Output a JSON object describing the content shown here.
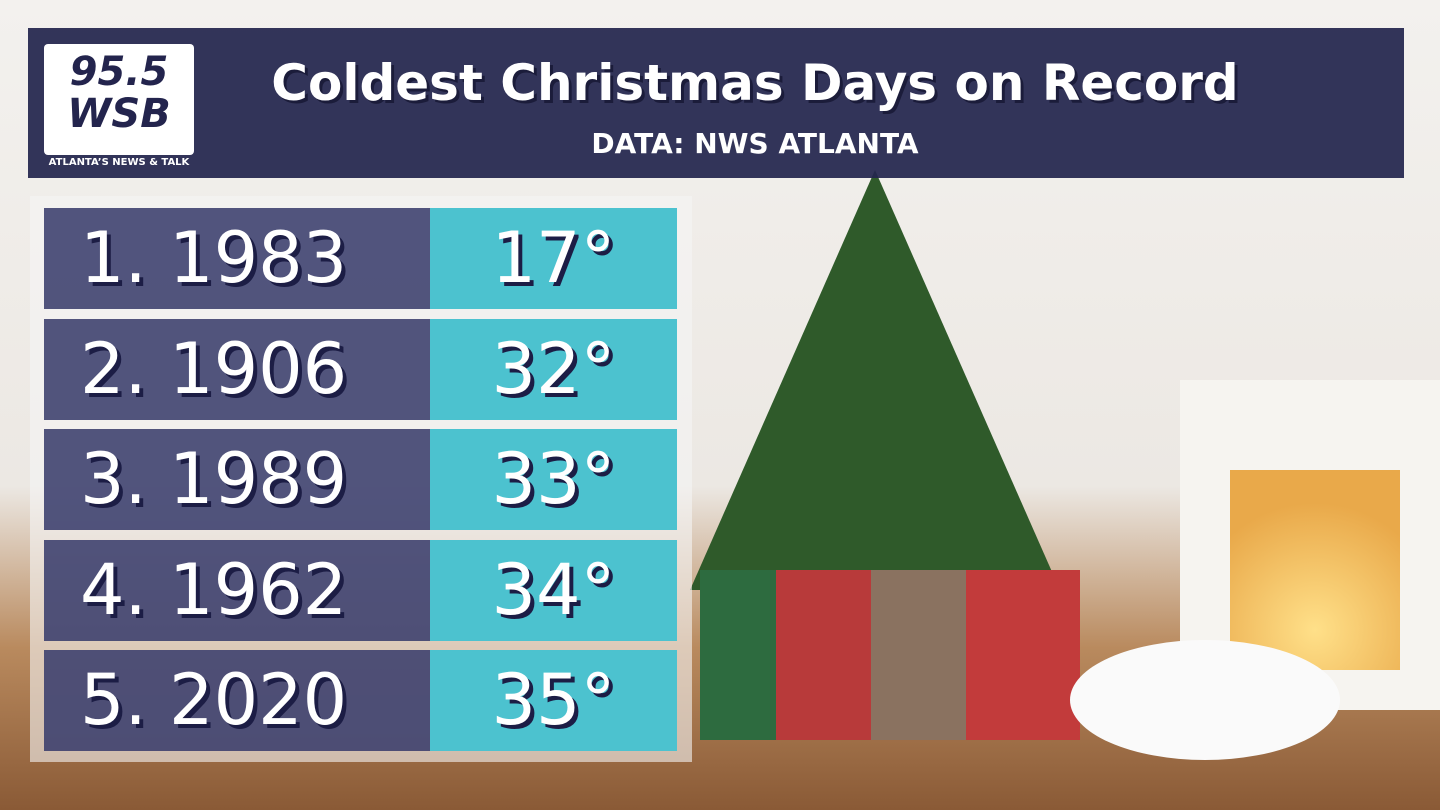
{
  "header": {
    "title": "Coldest Christmas Days on Record",
    "subtitle": "DATA: NWS ATLANTA"
  },
  "logo": {
    "frequency": "95.5",
    "station": "WSB",
    "tagline": "ATLANTA’S NEWS & TALK"
  },
  "table": {
    "rows": [
      [
        "1. 1983",
        "17°"
      ],
      [
        "2. 1906",
        "32°"
      ],
      [
        "3. 1989",
        "33°"
      ],
      [
        "4. 1962",
        "34°"
      ],
      [
        "5. 2020",
        "35°"
      ]
    ]
  }
}
